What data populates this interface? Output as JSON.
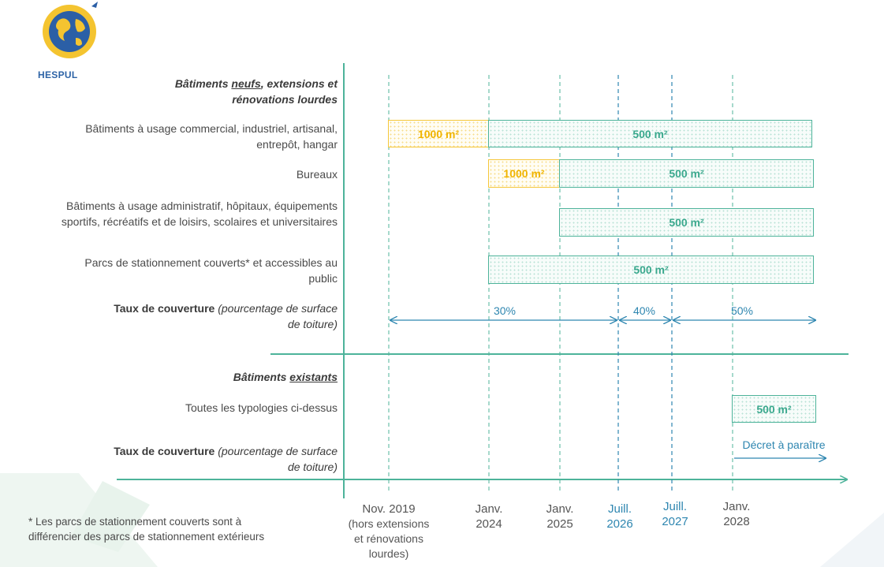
{
  "logo": {
    "text": "HESPUL"
  },
  "sections": {
    "new": {
      "title_a": "Bâtiments ",
      "title_u": "neufs",
      "title_b": ", extensions et",
      "title_c": "rénovations lourdes"
    },
    "existing": {
      "title_a": "Bâtiments ",
      "title_u": "existants"
    }
  },
  "rows": {
    "r1": {
      "line1": "Bâtiments à usage commercial, industriel, artisanal,",
      "line2": "entrepôt, hangar",
      "bar_a": "1000 m²",
      "bar_b": "500 m²"
    },
    "r2": {
      "line1": "Bureaux",
      "bar_a": "1000 m²",
      "bar_b": "500 m²"
    },
    "r3": {
      "line1": "Bâtiments à usage administratif, hôpitaux, équipements",
      "line2": "sportifs, récréatifs et de loisirs, scolaires et universitaires",
      "bar_b": "500 m²"
    },
    "r4": {
      "line1": "Parcs de stationnement couverts* et accessibles au",
      "line2": "public",
      "bar_b": "500 m²"
    },
    "r5": {
      "line1": "Toutes les typologies ci-dessus",
      "bar_b": "500 m²"
    }
  },
  "coverage": {
    "label_bold": "Taux de couverture",
    "label_italic": " (pourcentage de surface",
    "label_line2": "de toiture)",
    "p1": "30%",
    "p2": "40%",
    "p3": "50%",
    "decree": "Décret à paraître"
  },
  "dates": [
    {
      "line1": "Nov. 2019",
      "line2": "(hors extensions",
      "line3": "et rénovations",
      "line4": "lourdes)"
    },
    {
      "line1": "Janv.",
      "line2": "2024"
    },
    {
      "line1": "Janv.",
      "line2": "2025"
    },
    {
      "line1": "Juill.",
      "line2": "2026"
    },
    {
      "line1": "Juill.",
      "line2": "2027"
    },
    {
      "line1": "Janv.",
      "line2": "2028"
    }
  ],
  "footnote": {
    "line1": "* Les parcs de stationnement couverts sont à",
    "line2": "différencier des parcs de stationnement extérieurs"
  },
  "colors": {
    "green": "#4db39a",
    "yellow": "#f5c73c",
    "blue": "#2e86b0"
  }
}
